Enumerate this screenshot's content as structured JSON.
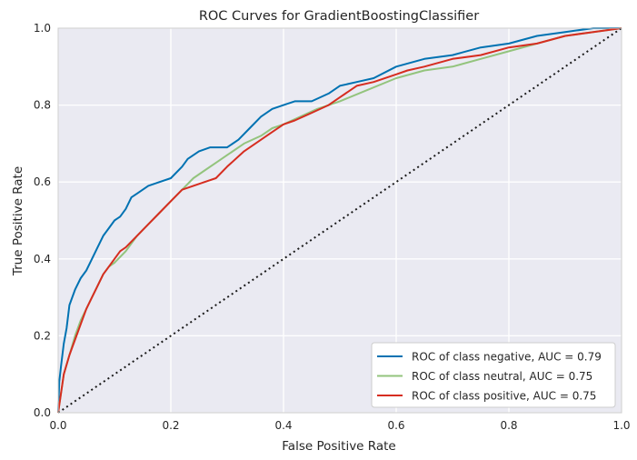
{
  "chart_data": {
    "type": "line",
    "title": "ROC Curves for GradientBoostingClassifier",
    "xlabel": "False Positive Rate",
    "ylabel": "True Positive Rate",
    "xlim": [
      0,
      1
    ],
    "ylim": [
      0,
      1
    ],
    "xticks": [
      "0.0",
      "0.2",
      "0.4",
      "0.6",
      "0.8",
      "1.0"
    ],
    "yticks": [
      "0.0",
      "0.2",
      "0.4",
      "0.6",
      "0.8",
      "1.0"
    ],
    "grid": true,
    "legend_position": "lower-right",
    "series": [
      {
        "name": "ROC of class negative, AUC = 0.79",
        "color": "#0072b2",
        "x": [
          0,
          0.002,
          0.005,
          0.01,
          0.015,
          0.02,
          0.03,
          0.04,
          0.05,
          0.06,
          0.07,
          0.08,
          0.09,
          0.1,
          0.11,
          0.12,
          0.13,
          0.14,
          0.16,
          0.18,
          0.2,
          0.22,
          0.23,
          0.25,
          0.27,
          0.3,
          0.32,
          0.34,
          0.36,
          0.38,
          0.4,
          0.42,
          0.45,
          0.48,
          0.5,
          0.53,
          0.56,
          0.6,
          0.65,
          0.7,
          0.75,
          0.8,
          0.85,
          0.9,
          0.95,
          1
        ],
        "y": [
          0,
          0.08,
          0.12,
          0.18,
          0.22,
          0.28,
          0.32,
          0.35,
          0.37,
          0.4,
          0.43,
          0.46,
          0.48,
          0.5,
          0.51,
          0.53,
          0.56,
          0.57,
          0.59,
          0.6,
          0.61,
          0.64,
          0.66,
          0.68,
          0.69,
          0.69,
          0.71,
          0.74,
          0.77,
          0.79,
          0.8,
          0.81,
          0.81,
          0.83,
          0.85,
          0.86,
          0.87,
          0.9,
          0.92,
          0.93,
          0.95,
          0.96,
          0.98,
          0.99,
          1.0,
          1.0
        ]
      },
      {
        "name": "ROC of class neutral, AUC = 0.75",
        "color": "#93c47d",
        "x": [
          0,
          0.005,
          0.01,
          0.02,
          0.03,
          0.04,
          0.05,
          0.06,
          0.07,
          0.08,
          0.09,
          0.1,
          0.12,
          0.14,
          0.16,
          0.18,
          0.2,
          0.22,
          0.24,
          0.26,
          0.28,
          0.3,
          0.33,
          0.36,
          0.38,
          0.4,
          0.43,
          0.46,
          0.5,
          0.55,
          0.6,
          0.65,
          0.7,
          0.75,
          0.8,
          0.85,
          0.9,
          0.95,
          1
        ],
        "y": [
          0,
          0.05,
          0.1,
          0.15,
          0.2,
          0.24,
          0.27,
          0.3,
          0.33,
          0.36,
          0.38,
          0.39,
          0.42,
          0.46,
          0.49,
          0.52,
          0.55,
          0.58,
          0.61,
          0.63,
          0.65,
          0.67,
          0.7,
          0.72,
          0.74,
          0.75,
          0.77,
          0.79,
          0.81,
          0.84,
          0.87,
          0.89,
          0.9,
          0.92,
          0.94,
          0.96,
          0.98,
          0.99,
          1.0
        ]
      },
      {
        "name": "ROC of class positive, AUC = 0.75",
        "color": "#d62d20",
        "x": [
          0,
          0.005,
          0.01,
          0.02,
          0.03,
          0.04,
          0.05,
          0.06,
          0.07,
          0.08,
          0.09,
          0.1,
          0.11,
          0.12,
          0.14,
          0.16,
          0.18,
          0.2,
          0.22,
          0.24,
          0.26,
          0.28,
          0.3,
          0.33,
          0.36,
          0.38,
          0.4,
          0.42,
          0.45,
          0.48,
          0.5,
          0.53,
          0.56,
          0.6,
          0.62,
          0.65,
          0.7,
          0.75,
          0.8,
          0.85,
          0.9,
          0.95,
          1
        ],
        "y": [
          0,
          0.05,
          0.1,
          0.15,
          0.19,
          0.23,
          0.27,
          0.3,
          0.33,
          0.36,
          0.38,
          0.4,
          0.42,
          0.43,
          0.46,
          0.49,
          0.52,
          0.55,
          0.58,
          0.59,
          0.6,
          0.61,
          0.64,
          0.68,
          0.71,
          0.73,
          0.75,
          0.76,
          0.78,
          0.8,
          0.82,
          0.85,
          0.86,
          0.88,
          0.89,
          0.9,
          0.92,
          0.93,
          0.95,
          0.96,
          0.98,
          0.99,
          1.0
        ]
      }
    ],
    "diagonal": {
      "x": [
        0,
        1
      ],
      "y": [
        0,
        1
      ],
      "style": "dotted",
      "color": "#1a1a1a"
    }
  },
  "colors": {
    "plot_background": "#eaeaf2",
    "grid": "#ffffff",
    "frame": "#cccccc"
  }
}
